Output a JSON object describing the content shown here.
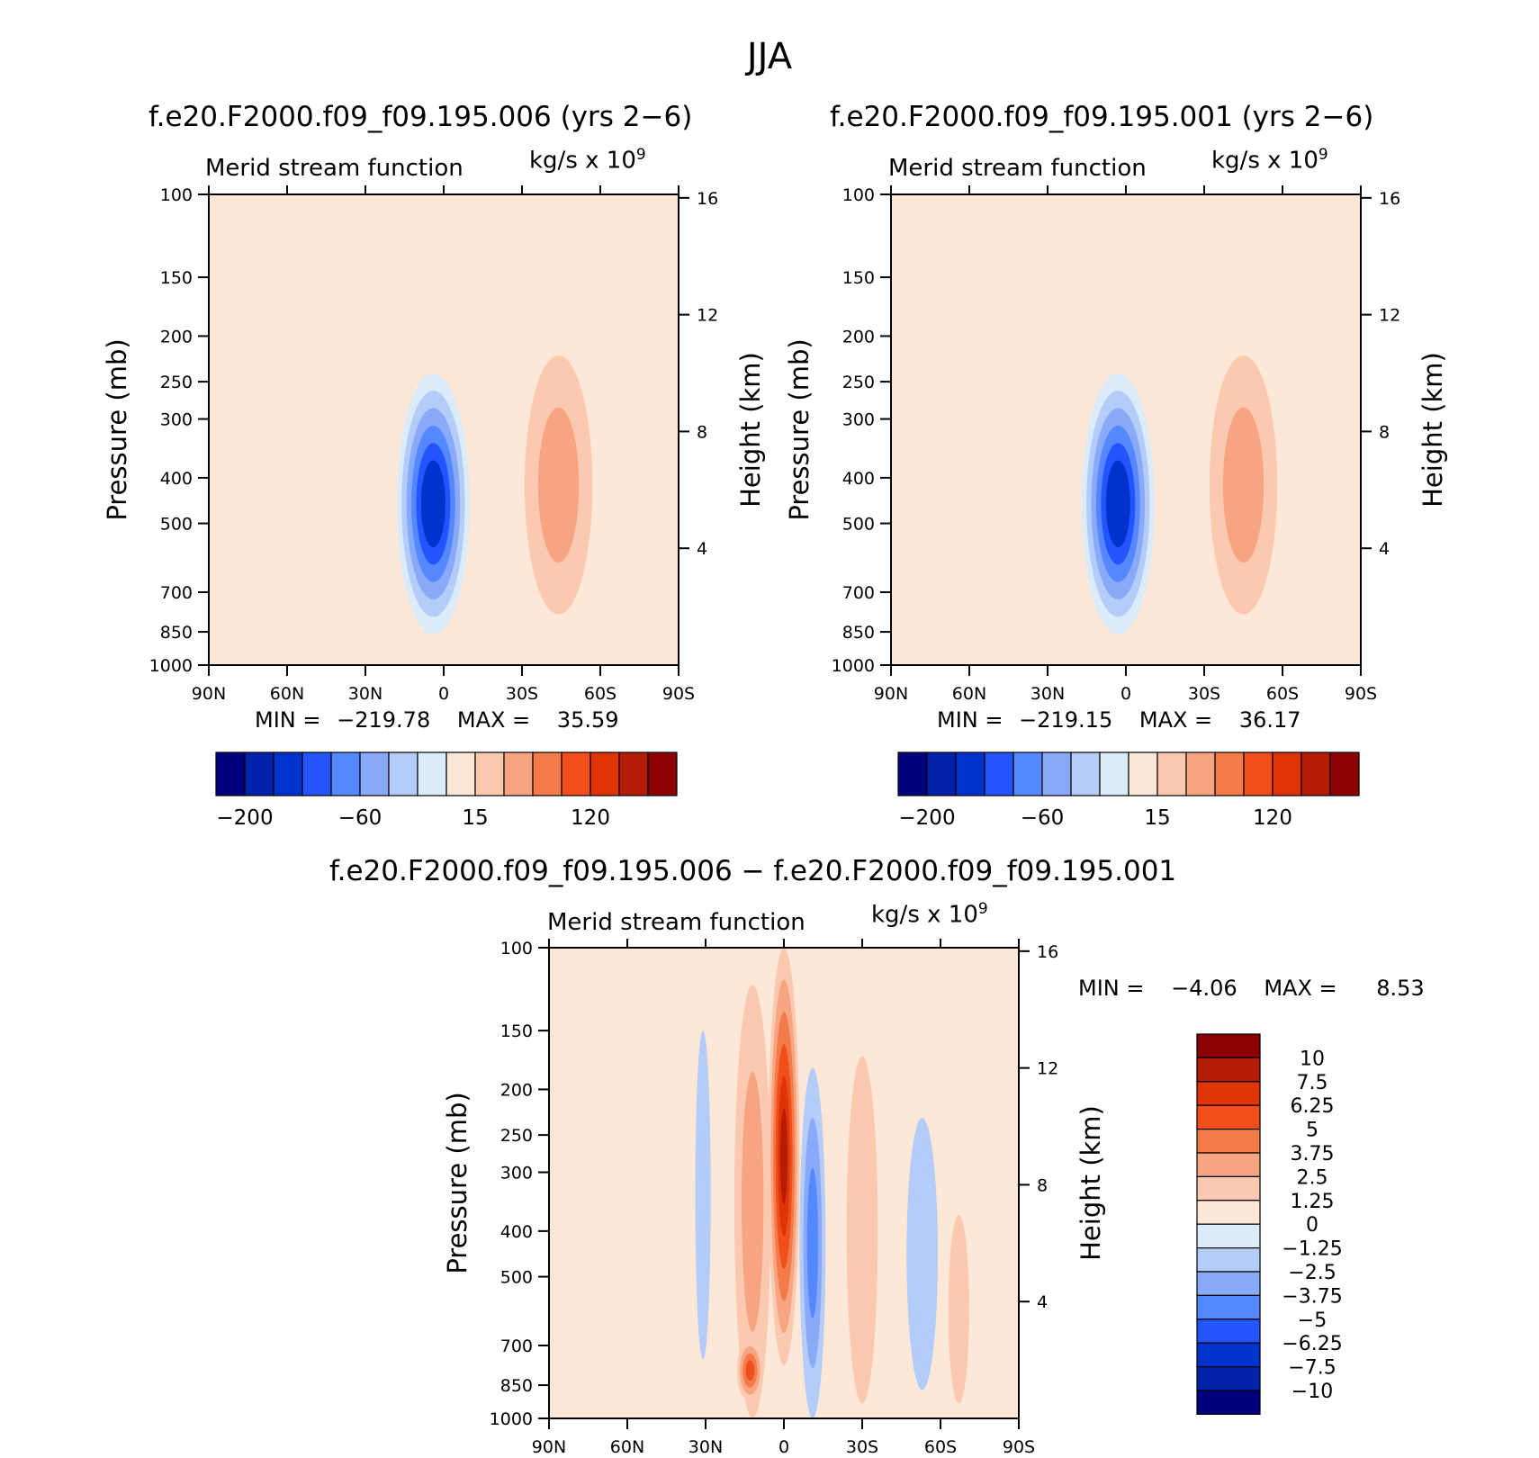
{
  "figure_title": "JJA",
  "colors": {
    "bwr": [
      "#00007f",
      "#0022aa",
      "#0033cc",
      "#2255ff",
      "#5587ff",
      "#88aaf8",
      "#b4ccf8",
      "#dcebfa",
      "#fde8d8",
      "#fac9af",
      "#f7a482",
      "#f37b4a",
      "#f04f1c",
      "#de3408",
      "#b41c06",
      "#8a0003"
    ]
  },
  "chart_data": [
    {
      "type": "heatmap",
      "title": "f.e20.F2000.f09_f09.195.006 (yrs 2−6)",
      "subtitle": "Merid stream function",
      "units": {
        "text": "kg/s x 10",
        "exp": "9"
      },
      "xlabel": "",
      "ylabel": "Pressure (mb)",
      "ylabel_right": "Height (km)",
      "x_ticks": [
        "90N",
        "60N",
        "30N",
        "0",
        "30S",
        "60S",
        "90S"
      ],
      "y_ticks": [
        "100",
        "150",
        "200",
        "250",
        "300",
        "400",
        "500",
        "700",
        "850",
        "1000"
      ],
      "y_right_ticks": [
        "16",
        "12",
        "8",
        "4"
      ],
      "stats": {
        "min_label": "MIN =",
        "min": "−219.78",
        "max_label": "MAX =",
        "max": "35.59"
      },
      "colorbar": {
        "orientation": "horizontal",
        "labels": [
          "−200",
          "−60",
          "15",
          "120"
        ]
      },
      "features": [
        {
          "lat": 4,
          "plev": 550,
          "lat_hw": 14,
          "p_hw": 310,
          "value": -200
        },
        {
          "lat": -44,
          "plev": 500,
          "lat_hw": 13,
          "p_hw": 280,
          "value": 33
        },
        {
          "lat": 42,
          "plev": 500,
          "lat_hw": 4,
          "p_hw": 280,
          "value": 14
        },
        {
          "lat": 56,
          "plev": 480,
          "lat_hw": 14,
          "p_hw": 400,
          "value": -5
        },
        {
          "lat": -80,
          "plev": 480,
          "lat_hw": 8,
          "p_hw": 400,
          "value": -4
        }
      ]
    },
    {
      "type": "heatmap",
      "title": "f.e20.F2000.f09_f09.195.001 (yrs 2−6)",
      "subtitle": "Merid stream function",
      "units": {
        "text": "kg/s x 10",
        "exp": "9"
      },
      "xlabel": "",
      "ylabel": "Pressure (mb)",
      "ylabel_right": "Height (km)",
      "x_ticks": [
        "90N",
        "60N",
        "30N",
        "0",
        "30S",
        "60S",
        "90S"
      ],
      "y_ticks": [
        "100",
        "150",
        "200",
        "250",
        "300",
        "400",
        "500",
        "700",
        "850",
        "1000"
      ],
      "y_right_ticks": [
        "16",
        "12",
        "8",
        "4"
      ],
      "stats": {
        "min_label": "MIN =",
        "min": "−219.15",
        "max_label": "MAX =",
        "max": "36.17"
      },
      "colorbar": {
        "orientation": "horizontal",
        "labels": [
          "−200",
          "−60",
          "15",
          "120"
        ]
      },
      "features": [
        {
          "lat": 3,
          "plev": 550,
          "lat_hw": 14,
          "p_hw": 310,
          "value": -200
        },
        {
          "lat": -45,
          "plev": 500,
          "lat_hw": 13,
          "p_hw": 280,
          "value": 33
        },
        {
          "lat": 44,
          "plev": 500,
          "lat_hw": 4,
          "p_hw": 280,
          "value": 12
        },
        {
          "lat": 56,
          "plev": 480,
          "lat_hw": 14,
          "p_hw": 400,
          "value": -5
        },
        {
          "lat": -80,
          "plev": 480,
          "lat_hw": 8,
          "p_hw": 400,
          "value": -4
        }
      ]
    },
    {
      "type": "heatmap",
      "title": "f.e20.F2000.f09_f09.195.006 − f.e20.F2000.f09_f09.195.001",
      "subtitle": "Merid stream function",
      "units": {
        "text": "kg/s x 10",
        "exp": "9"
      },
      "xlabel": "",
      "ylabel": "Pressure (mb)",
      "ylabel_right": "Height (km)",
      "x_ticks": [
        "90N",
        "60N",
        "30N",
        "0",
        "30S",
        "60S",
        "90S"
      ],
      "y_ticks": [
        "100",
        "150",
        "200",
        "250",
        "300",
        "400",
        "500",
        "700",
        "850",
        "1000"
      ],
      "y_right_ticks": [
        "16",
        "12",
        "8",
        "4"
      ],
      "stats": {
        "min_label": "MIN =",
        "min": "−4.06",
        "max_label": "MAX =",
        "max": "8.53"
      },
      "colorbar": {
        "orientation": "vertical",
        "labels": [
          "10",
          "7.5",
          "6.25",
          "5",
          "3.75",
          "2.5",
          "1.25",
          "0",
          "−1.25",
          "−2.5",
          "−3.75",
          "−5",
          "−6.25",
          "−7.5",
          "−10"
        ]
      },
      "features": [
        {
          "lat": 0,
          "plev": 350,
          "lat_hw": 6,
          "p_hw": 420,
          "value": 8
        },
        {
          "lat": 12,
          "plev": 600,
          "lat_hw": 7,
          "p_hw": 480,
          "value": 3.5
        },
        {
          "lat": 13,
          "plev": 800,
          "lat_hw": 5,
          "p_hw": 120,
          "value": 6
        },
        {
          "lat": -11,
          "plev": 600,
          "lat_hw": 5,
          "p_hw": 420,
          "value": -4
        },
        {
          "lat": -30,
          "plev": 550,
          "lat_hw": 6,
          "p_hw": 380,
          "value": 2.5
        },
        {
          "lat": 31,
          "plev": 450,
          "lat_hw": 3,
          "p_hw": 300,
          "value": -1.5
        },
        {
          "lat": -53,
          "plev": 550,
          "lat_hw": 6,
          "p_hw": 320,
          "value": -1.5
        },
        {
          "lat": -67,
          "plev": 650,
          "lat_hw": 4,
          "p_hw": 280,
          "value": 1.5
        }
      ]
    }
  ]
}
